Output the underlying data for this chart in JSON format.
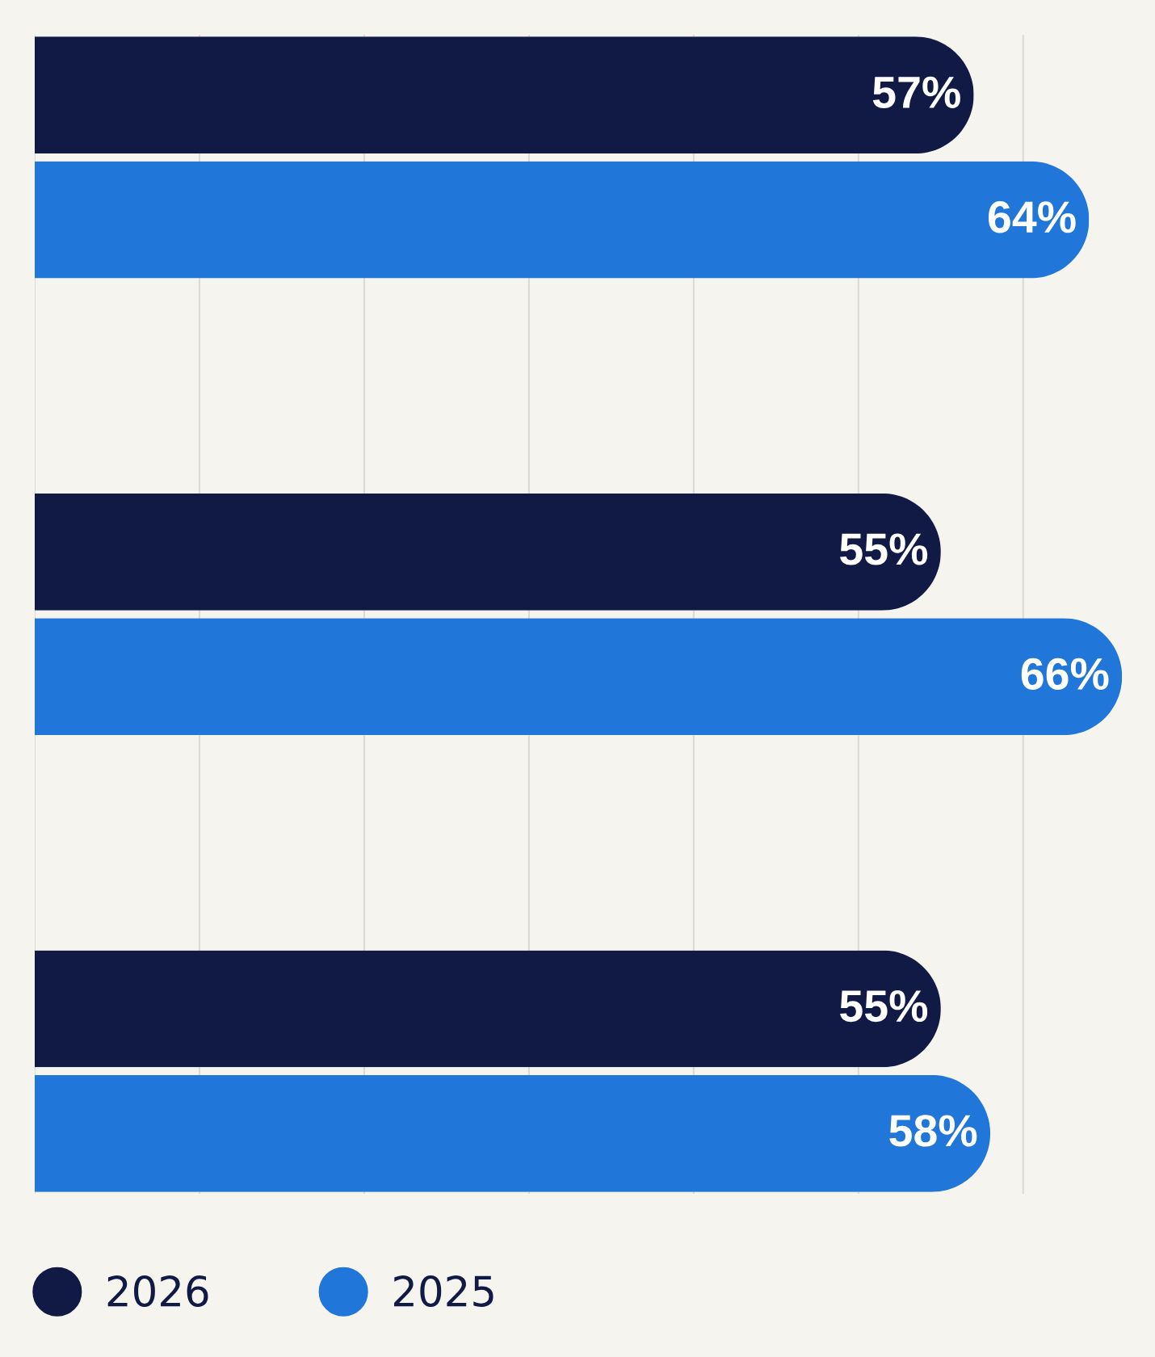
{
  "chart_data": {
    "type": "bar",
    "orientation": "horizontal",
    "categories": [
      null,
      null,
      null
    ],
    "series": [
      {
        "name": "2026",
        "color": "#101a45",
        "values": [
          57,
          55,
          55
        ],
        "value_labels": [
          "57%",
          "55%",
          "55%"
        ]
      },
      {
        "name": "2025",
        "color": "#2176d9",
        "values": [
          64,
          66,
          58
        ],
        "value_labels": [
          "64%",
          "66%",
          "58%"
        ]
      }
    ],
    "xlim": [
      0,
      68
    ],
    "xticks": [
      {
        "value": 0,
        "label": null
      },
      {
        "value": 10,
        "label": null
      },
      {
        "value": 20,
        "label": null
      },
      {
        "value": 30,
        "label": null
      },
      {
        "value": 40,
        "label": null
      },
      {
        "value": 50,
        "label": null
      },
      {
        "value": 60,
        "label": null
      }
    ],
    "grid": "x",
    "legend": "bottom"
  }
}
